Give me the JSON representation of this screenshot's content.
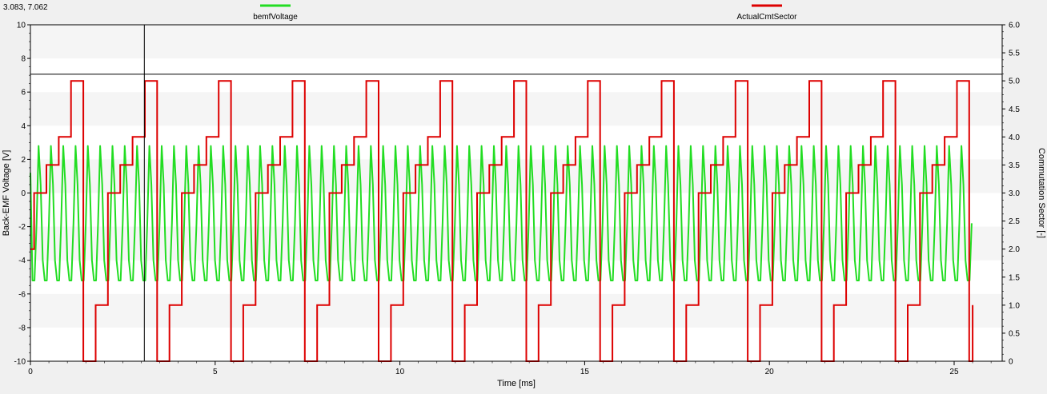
{
  "cursor_readout": "3.083, 7.062",
  "colors": {
    "bemf": "#22dd22",
    "sector": "#dd0000",
    "plot_bg": "#ffffff",
    "band_bg": "#f5f5f5",
    "frame": "#000000"
  },
  "chart_data": {
    "type": "line",
    "xlabel": "Time [ms]",
    "ylabel": "Back-EMF Voltage [V]",
    "y2label": "Commutation Sector [-]",
    "xlim": [
      0,
      26.3
    ],
    "ylim": [
      -10,
      10
    ],
    "y2lim": [
      0,
      6
    ],
    "grid": true,
    "legend_position": "top",
    "x_ticks": [
      "0",
      "5",
      "10",
      "15",
      "20",
      "25"
    ],
    "y_ticks": [
      "10",
      "8",
      "6",
      "4",
      "2",
      "0",
      "-2",
      "-4",
      "-6",
      "-8",
      "-10"
    ],
    "y2_ticks": [
      "6.0",
      "5.5",
      "5.0",
      "4.5",
      "4.0",
      "3.5",
      "3.0",
      "2.5",
      "2.0",
      "1.5",
      "1.0",
      "0.5",
      "0"
    ],
    "cursor": {
      "x": 3.083,
      "y": 7.062
    },
    "series": [
      {
        "name": "bemfVoltage",
        "axis": "left",
        "color": "#22dd22",
        "x_start": 0.0,
        "x_end": 25.5,
        "points_per_period": 6,
        "period_ms": 0.333,
        "pattern_values": [
          -5.2,
          -5.2,
          -1.8,
          2.8,
          0.5,
          -4.0
        ],
        "start_value": 1.2
      },
      {
        "name": "ActualCmtSector",
        "axis": "right",
        "color": "#dd0000",
        "period_ms": 2.0,
        "step_width_ms": 0.333,
        "start_x": 0.0,
        "start_value": 2.0,
        "first_step_x": 0.1,
        "end_x": 25.5,
        "end_value": 1.0,
        "pattern_values": [
          3.0,
          3.5,
          4.0,
          5.0,
          0.0,
          1.0
        ]
      }
    ]
  }
}
